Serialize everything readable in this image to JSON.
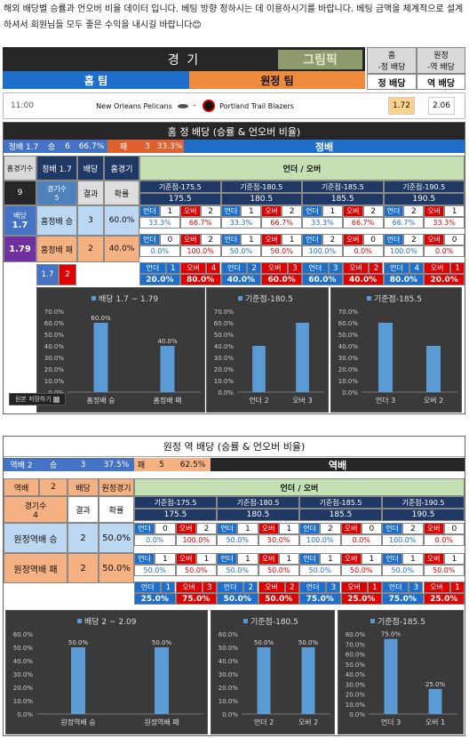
{
  "intro": "해외 배당별 승률과 언오버 비율 데이터 입니다. 베팅 방향 정하시는 데 이용하시기를 바랍니다.  베팅 금액을 체계적으로 설계하셔서 회원님들 모두 좋은 수익을 내시길 바랍니다😊",
  "header": {
    "title": "경 기",
    "home": "홈 팀",
    "away": "원정 팀",
    "col_home_top": "홈",
    "col_home_bot": "-정 배당",
    "col_away_top": "원정",
    "col_away_bot": "-역 배당",
    "lbl_home_odds": "정 배당",
    "lbl_away_odds": "역 배당",
    "watermark": "그림픽"
  },
  "match": {
    "time": "11:00",
    "home_team": "New Orleans Pelicans",
    "sep": "-",
    "away_team": "Portland Trail Blazers",
    "home_odds": "1.72",
    "away_odds": "2.06"
  },
  "s1": {
    "title": "홈 정 배당 (승률 & 언오버 비율)",
    "summary": {
      "odds_label": "정배 1.7",
      "win_label": "승",
      "win": "6",
      "win_pct": "66.7%",
      "lose_label": "패",
      "lose": "3",
      "lose_pct": "33.3%",
      "side": "정배"
    },
    "left": {
      "games_label": "홈경기수",
      "odds_lbl": "정배  1.7",
      "bet": "배당",
      "home_games": "홈경기",
      "count": "9",
      "games_hdr": "경기수",
      "games_val": "5",
      "col_result": "결과",
      "col_rate": "확률",
      "win_name": "홈정배 승",
      "win_n": "3",
      "win_p": "60.0%",
      "lose_name": "홈정배 패",
      "lose_n": "2",
      "lose_p": "40.0%",
      "odds_tag": "배당",
      "odds_v": "1.7",
      "odds_v2": "1.79",
      "foot_a": "1.7",
      "foot_b": "2"
    },
    "uo_title": "언더 / 오버",
    "lines": [
      {
        "hdr": "기준점-175.5",
        "val": "175.5",
        "w": [
          "언더",
          "1",
          "오버",
          "2"
        ],
        "wp": [
          "33.3%",
          "66.7%"
        ],
        "l": [
          "언더",
          "0",
          "오버",
          "2"
        ],
        "lp": [
          "0.0%",
          "100.0%"
        ],
        "t": [
          "언더",
          "1",
          "오버",
          "4"
        ],
        "tp": [
          "20.0%",
          "80.0%"
        ]
      },
      {
        "hdr": "기준점-180.5",
        "val": "180.5",
        "w": [
          "언더",
          "1",
          "오버",
          "2"
        ],
        "wp": [
          "33.3%",
          "66.7%"
        ],
        "l": [
          "언더",
          "1",
          "오버",
          "1"
        ],
        "lp": [
          "50.0%",
          "50.0%"
        ],
        "t": [
          "언더",
          "2",
          "오버",
          "3"
        ],
        "tp": [
          "40.0%",
          "60.0%"
        ]
      },
      {
        "hdr": "기준점-185.5",
        "val": "185.5",
        "w": [
          "언더",
          "1",
          "오버",
          "2"
        ],
        "wp": [
          "33.3%",
          "66.7%"
        ],
        "l": [
          "언더",
          "2",
          "오버",
          "0"
        ],
        "lp": [
          "100.0%",
          "0.0%"
        ],
        "t": [
          "언더",
          "3",
          "오버",
          "2"
        ],
        "tp": [
          "60.0%",
          "40.0%"
        ]
      },
      {
        "hdr": "기준점-190.5",
        "val": "190.5",
        "w": [
          "언더",
          "2",
          "오버",
          "1"
        ],
        "wp": [
          "66.7%",
          "33.3%"
        ],
        "l": [
          "언더",
          "2",
          "오버",
          "0"
        ],
        "lp": [
          "100.0%",
          "0.0%"
        ],
        "t": [
          "언더",
          "4",
          "오버",
          "1"
        ],
        "tp": [
          "80.0%",
          "20.0%"
        ]
      }
    ]
  },
  "s2": {
    "title": "원정 역 배당 (승률 & 언오버 비율)",
    "summary": {
      "odds_label": "역배 2",
      "win_label": "승",
      "win": "3",
      "win_pct": "37.5%",
      "lose_label": "패",
      "lose": "5",
      "lose_pct": "62.5%",
      "side": "역배"
    },
    "left": {
      "odds_lbl": "역배",
      "odds_val": "2",
      "bet": "배당",
      "away_games": "원정경기",
      "games_hdr": "경기수",
      "games_val": "4",
      "col_result": "결과",
      "col_rate": "확률",
      "win_name": "원정역배 승",
      "win_n": "2",
      "win_p": "50.0%",
      "lose_name": "원정역배 패",
      "lose_n": "2",
      "lose_p": "50.0%"
    },
    "uo_title": "언더 / 오버",
    "lines": [
      {
        "hdr": "기준점-175.5",
        "val": "175.5",
        "w": [
          "언더",
          "0",
          "오버",
          "2"
        ],
        "wp": [
          "0.0%",
          "100.0%"
        ],
        "l": [
          "언더",
          "1",
          "오버",
          "1"
        ],
        "lp": [
          "50.0%",
          "50.0%"
        ],
        "t": [
          "언더",
          "1",
          "오버",
          "3"
        ],
        "tp": [
          "25.0%",
          "75.0%"
        ]
      },
      {
        "hdr": "기준점-180.5",
        "val": "180.5",
        "w": [
          "언더",
          "1",
          "오버",
          "1"
        ],
        "wp": [
          "50.0%",
          "50.0%"
        ],
        "l": [
          "언더",
          "1",
          "오버",
          "1"
        ],
        "lp": [
          "50.0%",
          "50.0%"
        ],
        "t": [
          "언더",
          "2",
          "오버",
          "2"
        ],
        "tp": [
          "50.0%",
          "50.0%"
        ]
      },
      {
        "hdr": "기준점-185.5",
        "val": "185.5",
        "w": [
          "언더",
          "2",
          "오버",
          "0"
        ],
        "wp": [
          "100.0%",
          "0.0%"
        ],
        "l": [
          "언더",
          "1",
          "오버",
          "1"
        ],
        "lp": [
          "50.0%",
          "50.0%"
        ],
        "t": [
          "언더",
          "3",
          "오버",
          "1"
        ],
        "tp": [
          "75.0%",
          "25.0%"
        ]
      },
      {
        "hdr": "기준점-190.5",
        "val": "190.5",
        "w": [
          "언더",
          "2",
          "오버",
          "0"
        ],
        "wp": [
          "100.0%",
          "0.0%"
        ],
        "l": [
          "언더",
          "1",
          "오버",
          "1"
        ],
        "lp": [
          "50.0%",
          "50.0%"
        ],
        "t": [
          "언더",
          "3",
          "오버",
          "1"
        ],
        "tp": [
          "75.0%",
          "25.0%"
        ]
      }
    ]
  },
  "save_label": "원본 저장하기",
  "chart_data": [
    {
      "type": "bar",
      "title": "배당 1.7 ~ 1.79",
      "categories": [
        "홈정배 승",
        "홈정배 패"
      ],
      "values": [
        60,
        40
      ],
      "labels": [
        "60.0%",
        "40.0%"
      ],
      "ylim": [
        0,
        70
      ],
      "yticks": [
        "0.0%",
        "10.0%",
        "20.0%",
        "30.0%",
        "40.0%",
        "50.0%",
        "60.0%",
        "70.0%"
      ],
      "bar_color": "#5b9bd5"
    },
    {
      "type": "bar",
      "title": "기준점-180.5",
      "categories": [
        "언더 2",
        "오버 3"
      ],
      "values": [
        40,
        60
      ],
      "labels": [],
      "ylim": [
        0,
        70
      ],
      "yticks": [
        "0.0%",
        "10.0%",
        "20.0%",
        "30.0%",
        "40.0%",
        "50.0%",
        "60.0%",
        "70.0%"
      ],
      "bar_color": "#5b9bd5"
    },
    {
      "type": "bar",
      "title": "기준점-185.5",
      "categories": [
        "언더 3",
        "오버 2"
      ],
      "values": [
        60,
        40
      ],
      "labels": [],
      "ylim": [
        0,
        70
      ],
      "yticks": [
        "0.0%",
        "10.0%",
        "20.0%",
        "30.0%",
        "40.0%",
        "50.0%",
        "60.0%",
        "70.0%"
      ],
      "bar_color": "#5b9bd5"
    },
    {
      "type": "bar",
      "title": "배당 2 ~ 2.09",
      "categories": [
        "원정역배 승",
        "원정역배 패"
      ],
      "values": [
        50,
        50
      ],
      "labels": [
        "50.0%",
        "50.0%"
      ],
      "ylim": [
        0,
        60
      ],
      "yticks": [
        "0.0%",
        "10.0%",
        "20.0%",
        "30.0%",
        "40.0%",
        "50.0%",
        "60.0%"
      ],
      "bar_color": "#5b9bd5"
    },
    {
      "type": "bar",
      "title": "기준점-180.5",
      "categories": [
        "언더 2",
        "오버 2"
      ],
      "values": [
        50,
        50
      ],
      "labels": [
        "50.0%",
        "50.0%"
      ],
      "ylim": [
        0,
        60
      ],
      "yticks": [
        "0.0%",
        "10.0%",
        "20.0%",
        "30.0%",
        "40.0%",
        "50.0%",
        "60.0%"
      ],
      "bar_color": "#5b9bd5"
    },
    {
      "type": "bar",
      "title": "기준점-185.5",
      "categories": [
        "언더 3",
        "오버 1"
      ],
      "values": [
        75,
        25
      ],
      "labels": [
        "75.0%",
        "25.0%"
      ],
      "ylim": [
        0,
        80
      ],
      "yticks": [
        "0.0%",
        "10.0%",
        "20.0%",
        "30.0%",
        "40.0%",
        "50.0%",
        "60.0%",
        "70.0%",
        "80.0%"
      ],
      "bar_color": "#5b9bd5"
    }
  ]
}
